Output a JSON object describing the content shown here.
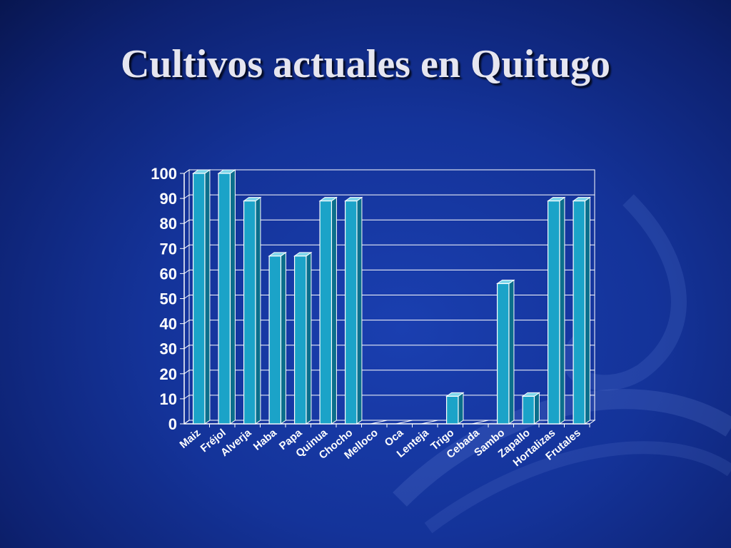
{
  "slide": {
    "title": "Cultivos actuales en Quitugo"
  },
  "colors": {
    "bar_front": "#1ba3c8",
    "bar_top": "#7fd6ea",
    "bar_side": "#0b6f8c",
    "grid": "#ffffff",
    "text": "#ffffff",
    "background": "#143399"
  },
  "chart_data": {
    "type": "bar",
    "title": "",
    "xlabel": "",
    "ylabel": "",
    "ylim": [
      0,
      100
    ],
    "yticks": [
      0,
      10,
      20,
      30,
      40,
      50,
      60,
      70,
      80,
      90,
      100
    ],
    "grid": true,
    "legend": "none",
    "categories": [
      "Maiz",
      "Fréjol",
      "Alverja",
      "Haba",
      "Papa",
      "Quinua",
      "Chocho",
      "Melloco",
      "Oca",
      "Lenteja",
      "Trigo",
      "Cebada",
      "Sambo",
      "Zapallo",
      "Hortalizas",
      "Frutales"
    ],
    "values": [
      100,
      100,
      89,
      67,
      67,
      89,
      89,
      0,
      0,
      0,
      11,
      0,
      56,
      11,
      89,
      89
    ]
  }
}
